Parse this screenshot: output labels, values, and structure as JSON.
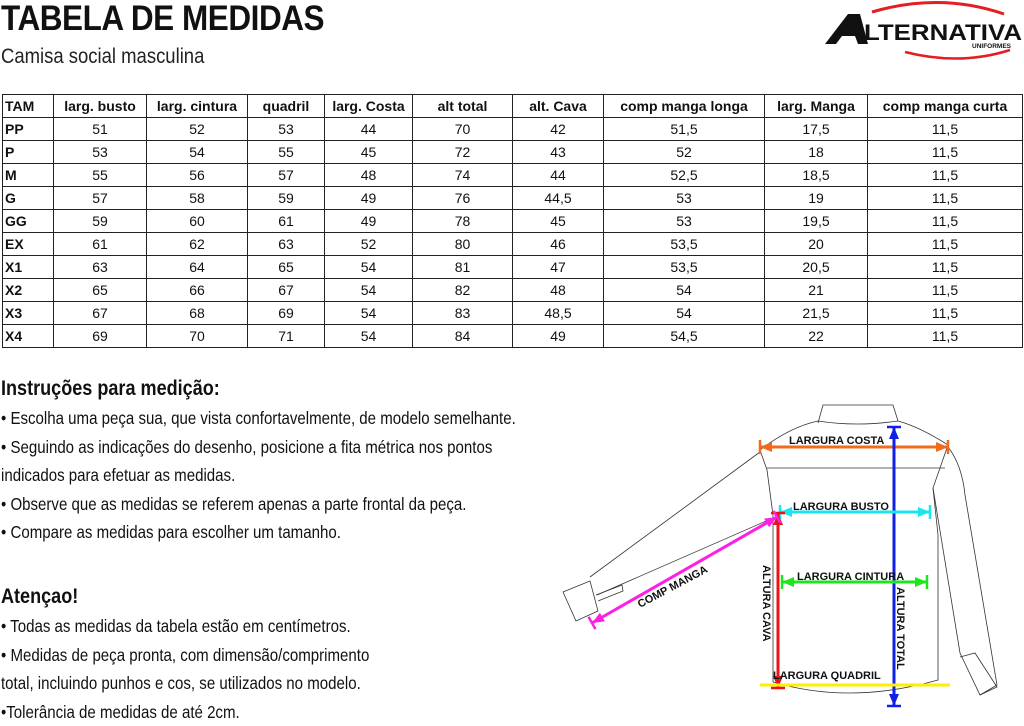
{
  "header": {
    "title": "TABELA DE MEDIDAS",
    "subtitle": "Camisa social masculina",
    "logo_text": "ALTERNATIVA",
    "logo_subtext": "UNIFORMES"
  },
  "table": {
    "columns": [
      "TAM",
      "larg. busto",
      "larg. cintura",
      "quadril",
      "larg. Costa",
      "alt total",
      "alt. Cava",
      "comp manga longa",
      "larg. Manga",
      "comp manga curta"
    ],
    "rows": [
      [
        "PP",
        "51",
        "52",
        "53",
        "44",
        "70",
        "42",
        "51,5",
        "17,5",
        "11,5"
      ],
      [
        "P",
        "53",
        "54",
        "55",
        "45",
        "72",
        "43",
        "52",
        "18",
        "11,5"
      ],
      [
        "M",
        "55",
        "56",
        "57",
        "48",
        "74",
        "44",
        "52,5",
        "18,5",
        "11,5"
      ],
      [
        "G",
        "57",
        "58",
        "59",
        "49",
        "76",
        "44,5",
        "53",
        "19",
        "11,5"
      ],
      [
        "GG",
        "59",
        "60",
        "61",
        "49",
        "78",
        "45",
        "53",
        "19,5",
        "11,5"
      ],
      [
        "EX",
        "61",
        "62",
        "63",
        "52",
        "80",
        "46",
        "53,5",
        "20",
        "11,5"
      ],
      [
        "X1",
        "63",
        "64",
        "65",
        "54",
        "81",
        "47",
        "53,5",
        "20,5",
        "11,5"
      ],
      [
        "X2",
        "65",
        "66",
        "67",
        "54",
        "82",
        "48",
        "54",
        "21",
        "11,5"
      ],
      [
        "X3",
        "67",
        "68",
        "69",
        "54",
        "83",
        "48,5",
        "54",
        "21,5",
        "11,5"
      ],
      [
        "X4",
        "69",
        "70",
        "71",
        "54",
        "84",
        "49",
        "54,5",
        "22",
        "11,5"
      ]
    ]
  },
  "instructions": {
    "heading": "Instruções para medição:",
    "lines": [
      "• Escolha uma peça sua, que vista confortavelmente, de modelo semelhante.",
      "• Seguindo as indicações do desenho, posicione a fita métrica nos pontos",
      "indicados para efetuar as medidas.",
      "• Observe que as medidas se referem apenas a parte frontal da peça.",
      "• Compare as medidas para escolher um tamanho."
    ]
  },
  "attention": {
    "heading": "Atençao!",
    "lines": [
      "• Todas as medidas da tabela estão em centímetros.",
      "• Medidas de peça pronta, com dimensão/comprimento",
      "total, incluindo punhos e cos, se utilizados no modelo.",
      "•Tolerância de medidas de até 2cm."
    ]
  },
  "diagram": {
    "labels": {
      "costa": "LARGURA COSTA",
      "busto": "LARGURA  BUSTO",
      "cintura": "LARGURA CINTURA",
      "quadril": "LARGURA QUADRIL",
      "altura_cava": "ALTURA CAVA",
      "altura_total": "ALTURA TOTAL",
      "comp_manga": "COMP MANGA"
    },
    "colors": {
      "costa": "#f26a1b",
      "busto": "#19e6f0",
      "cintura": "#1ee61e",
      "quadril": "#ffee00",
      "altura_cava": "#e8141b",
      "altura_total": "#1020e8",
      "comp_manga": "#ff1ee6"
    }
  },
  "colors": {
    "logo_arc": "#e31e24",
    "text": "#111111"
  }
}
